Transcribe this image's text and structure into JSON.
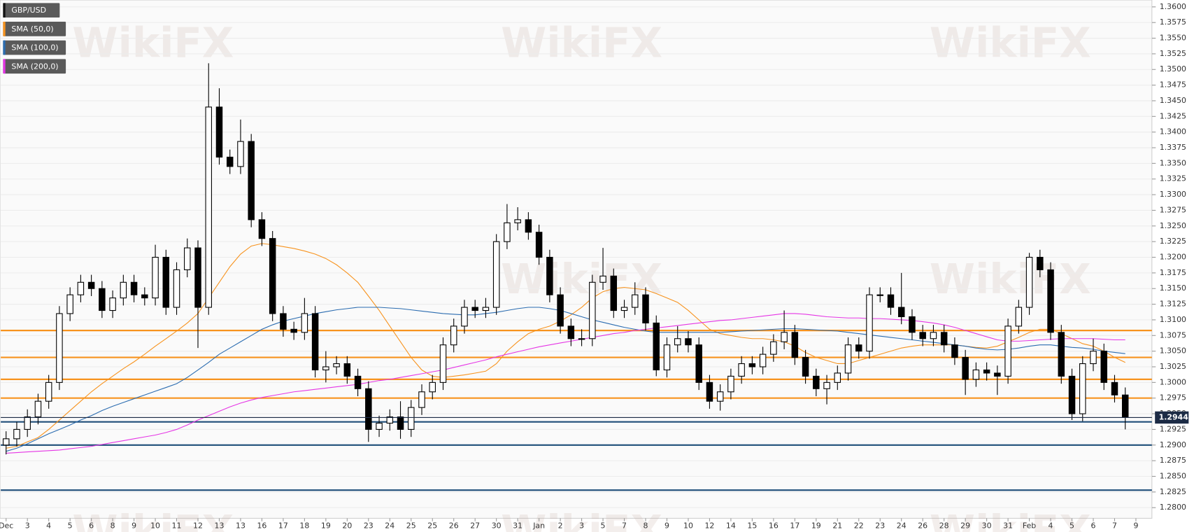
{
  "chart_data": {
    "type": "candlestick",
    "watermark": "WikiFX",
    "categories": [
      "Dec",
      null,
      "3",
      null,
      "4",
      null,
      "5",
      null,
      "6",
      null,
      "8",
      null,
      "9",
      null,
      "10",
      null,
      "11",
      null,
      "12",
      null,
      "13",
      null,
      "13",
      null,
      "16",
      null,
      "17",
      null,
      "18",
      null,
      "19",
      null,
      "20",
      null,
      "23",
      null,
      "24",
      null,
      "25",
      null,
      "25",
      null,
      "26",
      null,
      "27",
      null,
      "30",
      null,
      "31",
      null,
      "Jan",
      null,
      "2",
      null,
      "3",
      null,
      "5",
      null,
      "7",
      null,
      "8",
      null,
      "9",
      null,
      "10",
      null,
      "12",
      null,
      "14",
      null,
      "15",
      null,
      "16",
      null,
      "17",
      null,
      "19",
      null,
      "21",
      null,
      "22",
      null,
      "23",
      null,
      "24",
      null,
      "26",
      null,
      "28",
      null,
      "29",
      null,
      "30",
      null,
      "31",
      null,
      "Feb",
      null,
      "4",
      null,
      "5",
      null,
      "6",
      null,
      "7",
      null,
      "9",
      null
    ],
    "series": [
      {
        "name": "GBP/USD",
        "color": "#000000",
        "open": [
          1.29,
          1.291,
          1.2925,
          1.2945,
          1.297,
          1.3,
          1.311,
          1.314,
          1.316,
          1.315,
          1.3115,
          1.3135,
          1.316,
          1.314,
          1.3135,
          1.32,
          1.312,
          1.318,
          1.3215,
          1.312,
          1.344,
          1.336,
          1.3345,
          1.3385,
          1.326,
          1.323,
          1.311,
          1.3085,
          1.308,
          1.311,
          1.302,
          1.3025,
          1.303,
          1.301,
          1.299,
          1.2925,
          1.2935,
          1.2945,
          1.2925,
          1.296,
          1.2985,
          1.3,
          1.306,
          1.309,
          1.312,
          1.3115,
          1.312,
          1.3225,
          1.3255,
          1.326,
          1.324,
          1.32,
          1.314,
          1.309,
          1.307,
          1.307,
          1.316,
          1.317,
          1.3115,
          1.312,
          1.314,
          1.3095,
          1.302,
          1.306,
          1.307,
          1.306,
          1.3,
          1.297,
          1.2985,
          1.301,
          1.303,
          1.3025,
          1.3045,
          1.3065,
          1.308,
          1.304,
          1.301,
          1.299,
          1.3,
          1.3015,
          1.306,
          1.305,
          1.314,
          1.314,
          1.312,
          1.3105,
          1.308,
          1.307,
          1.308,
          1.306,
          1.304,
          1.3005,
          1.302,
          1.3015,
          1.301,
          1.309,
          1.312,
          1.32,
          1.318,
          1.308,
          1.301,
          1.295,
          1.303,
          1.305,
          1.3,
          1.298,
          null,
          null
        ],
        "high": [
          1.2922,
          1.2937,
          1.2957,
          1.2982,
          1.3012,
          1.3122,
          1.3152,
          1.3172,
          1.3172,
          1.3162,
          1.3147,
          1.3172,
          1.3172,
          1.3152,
          1.322,
          1.3212,
          1.3192,
          1.323,
          1.3227,
          1.351,
          1.347,
          1.3372,
          1.342,
          1.3397,
          1.3272,
          1.3242,
          1.3122,
          1.3097,
          1.3135,
          1.3122,
          1.305,
          1.3042,
          1.3042,
          1.3022,
          1.3002,
          1.2947,
          1.2957,
          1.297,
          1.2972,
          1.2997,
          1.3012,
          1.3072,
          1.3102,
          1.3132,
          1.3132,
          1.3135,
          1.3237,
          1.3285,
          1.328,
          1.3272,
          1.3252,
          1.3212,
          1.3152,
          1.3102,
          1.3085,
          1.3172,
          1.3215,
          1.3182,
          1.3132,
          1.316,
          1.3152,
          1.3107,
          1.3072,
          1.309,
          1.3082,
          1.3072,
          1.3012,
          1.2997,
          1.3022,
          1.3042,
          1.3042,
          1.3057,
          1.3077,
          1.3115,
          1.3092,
          1.3052,
          1.3022,
          1.3012,
          1.3027,
          1.3072,
          1.3072,
          1.3152,
          1.3152,
          1.3152,
          1.3175,
          1.3117,
          1.3092,
          1.3092,
          1.3092,
          1.3072,
          1.3052,
          1.3032,
          1.3032,
          1.3027,
          1.3102,
          1.3132,
          1.3207,
          1.3212,
          1.3192,
          1.3092,
          1.3022,
          1.3042,
          1.307,
          1.3062,
          1.3012,
          1.2992,
          null,
          null
        ],
        "low": [
          1.2885,
          1.2898,
          1.2913,
          1.2933,
          1.2958,
          1.2988,
          1.3098,
          1.3128,
          1.3138,
          1.3103,
          1.3103,
          1.3123,
          1.3128,
          1.3123,
          1.3123,
          1.3108,
          1.3108,
          1.3168,
          1.3055,
          1.3108,
          1.3348,
          1.3333,
          1.3333,
          1.3248,
          1.3218,
          1.3098,
          1.3073,
          1.3068,
          1.3068,
          1.3008,
          1.3,
          1.3013,
          1.2998,
          1.2978,
          1.2905,
          1.2913,
          1.2923,
          1.291,
          1.2913,
          1.2948,
          1.2973,
          1.2988,
          1.3048,
          1.3078,
          1.3103,
          1.3103,
          1.3108,
          1.3213,
          1.3243,
          1.3228,
          1.3188,
          1.3128,
          1.3078,
          1.3058,
          1.3058,
          1.3058,
          1.3148,
          1.3103,
          1.3103,
          1.3108,
          1.3083,
          1.301,
          1.3008,
          1.3048,
          1.3048,
          1.2988,
          1.2958,
          1.2955,
          1.2973,
          1.2998,
          1.3013,
          1.3013,
          1.3033,
          1.3053,
          1.3028,
          1.2998,
          1.2978,
          1.2965,
          1.2988,
          1.3003,
          1.3038,
          1.3038,
          1.3128,
          1.3108,
          1.3093,
          1.3068,
          1.3058,
          1.3058,
          1.3048,
          1.3028,
          1.298,
          1.2993,
          1.3003,
          1.298,
          1.2998,
          1.3078,
          1.3108,
          1.3168,
          1.3068,
          1.2998,
          1.294,
          1.2938,
          1.3018,
          1.2988,
          1.2968,
          1.2925,
          null,
          null
        ],
        "close": [
          1.291,
          1.2925,
          1.2945,
          1.297,
          1.3,
          1.311,
          1.314,
          1.316,
          1.315,
          1.3115,
          1.3135,
          1.316,
          1.314,
          1.3135,
          1.32,
          1.312,
          1.318,
          1.3215,
          1.312,
          1.344,
          1.336,
          1.3345,
          1.3385,
          1.326,
          1.323,
          1.311,
          1.3085,
          1.308,
          1.311,
          1.302,
          1.3025,
          1.303,
          1.301,
          1.299,
          1.2925,
          1.2935,
          1.2945,
          1.2925,
          1.296,
          1.2985,
          1.3,
          1.306,
          1.309,
          1.312,
          1.3115,
          1.312,
          1.3225,
          1.3255,
          1.326,
          1.324,
          1.32,
          1.314,
          1.309,
          1.307,
          1.307,
          1.316,
          1.317,
          1.3115,
          1.312,
          1.314,
          1.3095,
          1.302,
          1.306,
          1.307,
          1.306,
          1.3,
          1.297,
          1.2985,
          1.301,
          1.303,
          1.3025,
          1.3045,
          1.3065,
          1.308,
          1.304,
          1.301,
          1.299,
          1.3,
          1.3015,
          1.306,
          1.305,
          1.314,
          1.314,
          1.312,
          1.3105,
          1.308,
          1.307,
          1.308,
          1.306,
          1.304,
          1.3005,
          1.302,
          1.3015,
          1.301,
          1.309,
          1.312,
          1.32,
          1.318,
          1.308,
          1.301,
          1.295,
          1.303,
          1.305,
          1.3,
          1.298,
          1.2944,
          null,
          null
        ]
      }
    ],
    "lines": [
      {
        "name": "SMA (50,0)",
        "color": "#f7931e",
        "values": [
          1.2895,
          1.2898,
          1.2905,
          1.2912,
          1.2925,
          1.294,
          1.2955,
          1.297,
          1.2985,
          1.2998,
          1.301,
          1.3022,
          1.3033,
          1.3045,
          1.3058,
          1.307,
          1.3082,
          1.3095,
          1.311,
          1.3135,
          1.316,
          1.3185,
          1.3205,
          1.3218,
          1.3222,
          1.322,
          1.3217,
          1.3214,
          1.321,
          1.3205,
          1.3198,
          1.3188,
          1.3175,
          1.316,
          1.3138,
          1.3115,
          1.309,
          1.3065,
          1.304,
          1.302,
          1.301,
          1.3008,
          1.301,
          1.3012,
          1.3015,
          1.3018,
          1.303,
          1.305,
          1.3065,
          1.3078,
          1.3085,
          1.309,
          1.3098,
          1.3108,
          1.312,
          1.3135,
          1.3145,
          1.315,
          1.3152,
          1.315,
          1.3148,
          1.3142,
          1.3135,
          1.3128,
          1.3115,
          1.31,
          1.3085,
          1.3078,
          1.3075,
          1.3072,
          1.307,
          1.307,
          1.3068,
          1.3065,
          1.3058,
          1.3048,
          1.304,
          1.3035,
          1.303,
          1.303,
          1.3035,
          1.304,
          1.3045,
          1.305,
          1.3055,
          1.3058,
          1.306,
          1.306,
          1.306,
          1.306,
          1.3058,
          1.3056,
          1.3055,
          1.3058,
          1.3065,
          1.3072,
          1.308,
          1.3085,
          1.3085,
          1.3078,
          1.307,
          1.3062,
          1.3058,
          1.305,
          1.304,
          1.3032,
          null,
          null
        ]
      },
      {
        "name": "SMA (100,0)",
        "color": "#2b6cb0",
        "values": [
          1.289,
          1.2895,
          1.2902,
          1.291,
          1.2918,
          1.2925,
          1.2932,
          1.294,
          1.2947,
          1.2955,
          1.2962,
          1.2968,
          1.2974,
          1.298,
          1.2986,
          1.2992,
          1.2998,
          1.3008,
          1.302,
          1.3032,
          1.3045,
          1.3055,
          1.3065,
          1.3075,
          1.3085,
          1.3092,
          1.3098,
          1.3102,
          1.3106,
          1.311,
          1.3113,
          1.3116,
          1.3118,
          1.312,
          1.312,
          1.312,
          1.3119,
          1.3118,
          1.3116,
          1.3114,
          1.3112,
          1.311,
          1.3109,
          1.3108,
          1.3108,
          1.311,
          1.3112,
          1.3115,
          1.3118,
          1.312,
          1.312,
          1.3118,
          1.3115,
          1.311,
          1.3105,
          1.31,
          1.3096,
          1.3092,
          1.3088,
          1.3085,
          1.3082,
          1.308,
          1.308,
          1.308,
          1.308,
          1.308,
          1.308,
          1.308,
          1.3081,
          1.3082,
          1.3083,
          1.3084,
          1.3085,
          1.3086,
          1.3086,
          1.3085,
          1.3084,
          1.3083,
          1.3082,
          1.308,
          1.3078,
          1.3076,
          1.3074,
          1.3072,
          1.307,
          1.3068,
          1.3066,
          1.3064,
          1.3062,
          1.306,
          1.3058,
          1.3055,
          1.3053,
          1.3052,
          1.3053,
          1.3055,
          1.3058,
          1.306,
          1.306,
          1.3058,
          1.3056,
          1.3055,
          1.3053,
          1.305,
          1.3048,
          1.3046,
          null,
          null
        ]
      },
      {
        "name": "SMA (200,0)",
        "color": "#e535e5",
        "values": [
          1.2887,
          1.2888,
          1.2889,
          1.289,
          1.2891,
          1.2892,
          1.2894,
          1.2896,
          1.2898,
          1.2901,
          1.2904,
          1.2907,
          1.291,
          1.2913,
          1.2916,
          1.292,
          1.2925,
          1.2932,
          1.294,
          1.2947,
          1.2954,
          1.2961,
          1.2967,
          1.2972,
          1.2976,
          1.2979,
          1.2982,
          1.2985,
          1.2987,
          1.2989,
          1.2991,
          1.2993,
          1.2995,
          1.2997,
          1.3,
          1.3003,
          1.3005,
          1.3008,
          1.3011,
          1.3014,
          1.3017,
          1.302,
          1.3024,
          1.3028,
          1.3032,
          1.3036,
          1.3041,
          1.3045,
          1.3049,
          1.3053,
          1.3057,
          1.306,
          1.3063,
          1.3066,
          1.3069,
          1.3072,
          1.3075,
          1.3078,
          1.308,
          1.3083,
          1.3085,
          1.3087,
          1.3089,
          1.3091,
          1.3093,
          1.3095,
          1.3097,
          1.3099,
          1.31,
          1.3102,
          1.3104,
          1.3106,
          1.3108,
          1.311,
          1.311,
          1.3109,
          1.3107,
          1.3105,
          1.3104,
          1.3103,
          1.3103,
          1.3102,
          1.3102,
          1.3101,
          1.31,
          1.3099,
          1.3097,
          1.3095,
          1.3092,
          1.3088,
          1.3083,
          1.3078,
          1.3073,
          1.3068,
          1.3066,
          1.3066,
          1.3067,
          1.3068,
          1.3069,
          1.307,
          1.307,
          1.307,
          1.307,
          1.3069,
          1.3068,
          1.3068,
          null,
          null
        ]
      }
    ],
    "levels": [
      {
        "value": 1.3083,
        "color": "#f7931e"
      },
      {
        "value": 1.304,
        "color": "#f7931e"
      },
      {
        "value": 1.3005,
        "color": "#f7931e"
      },
      {
        "value": 1.2975,
        "color": "#f7931e"
      },
      {
        "value": 1.2937,
        "color": "#1f4e79"
      },
      {
        "value": 1.29,
        "color": "#1f4e79"
      },
      {
        "value": 1.2828,
        "color": "#1f4e79"
      }
    ],
    "last_price": 1.2944,
    "ylim": [
      1.2783,
      1.3611
    ],
    "yticks": [
      {
        "value": 1.28,
        "label": "1.2800"
      },
      {
        "value": 1.2825,
        "label": "1.2825"
      },
      {
        "value": 1.285,
        "label": "1.2850"
      },
      {
        "value": 1.2875,
        "label": "1.2875"
      },
      {
        "value": 1.29,
        "label": "1.2900"
      },
      {
        "value": 1.2925,
        "label": "1.2925"
      },
      {
        "value": 1.295,
        "label": "1.2950"
      },
      {
        "value": 1.2975,
        "label": "1.2975"
      },
      {
        "value": 1.3,
        "label": "1.3000"
      },
      {
        "value": 1.3025,
        "label": "1.3025"
      },
      {
        "value": 1.305,
        "label": "1.3050"
      },
      {
        "value": 1.3075,
        "label": "1.3075"
      },
      {
        "value": 1.31,
        "label": "1.3100"
      },
      {
        "value": 1.3125,
        "label": "1.3125"
      },
      {
        "value": 1.315,
        "label": "1.3150"
      },
      {
        "value": 1.3175,
        "label": "1.3175"
      },
      {
        "value": 1.32,
        "label": "1.3200"
      },
      {
        "value": 1.3225,
        "label": "1.3225"
      },
      {
        "value": 1.325,
        "label": "1.3250"
      },
      {
        "value": 1.3275,
        "label": "1.3275"
      },
      {
        "value": 1.33,
        "label": "1.3300"
      },
      {
        "value": 1.3325,
        "label": "1.3325"
      },
      {
        "value": 1.335,
        "label": "1.3350"
      },
      {
        "value": 1.3375,
        "label": "1.3375"
      },
      {
        "value": 1.34,
        "label": "1.3400"
      },
      {
        "value": 1.3425,
        "label": "1.3425"
      },
      {
        "value": 1.345,
        "label": "1.3450"
      },
      {
        "value": 1.3475,
        "label": "1.3475"
      },
      {
        "value": 1.35,
        "label": "1.3500"
      },
      {
        "value": 1.3525,
        "label": "1.3525"
      },
      {
        "value": 1.355,
        "label": "1.3550"
      },
      {
        "value": 1.3575,
        "label": "1.3575"
      },
      {
        "value": 1.36,
        "label": "1.3600"
      }
    ],
    "grid": true
  }
}
